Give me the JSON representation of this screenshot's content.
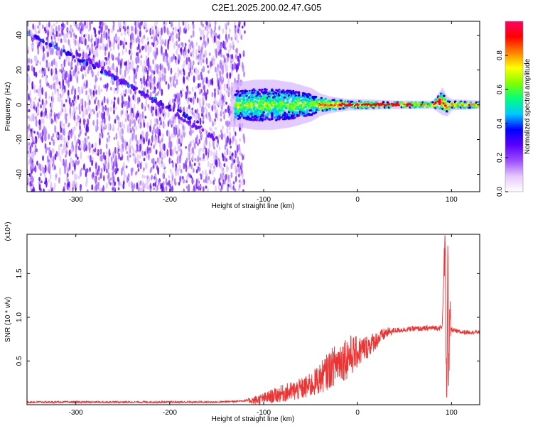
{
  "title": "C2E1.2025.200.02.47.G05",
  "chart_data": [
    {
      "type": "heatmap",
      "xlabel": "Height of straight line (km)",
      "ylabel": "Frequency (Hz)",
      "xlim": [
        -352,
        130
      ],
      "ylim": [
        -50,
        48
      ],
      "xticks": [
        -300,
        -200,
        -100,
        0,
        100
      ],
      "xtick_labels": [
        "-300",
        "-200",
        "-100",
        "0",
        "100"
      ],
      "yticks": [
        -40,
        -20,
        0,
        20,
        40
      ],
      "ytick_labels": [
        "-40",
        "-20",
        "0",
        "20",
        "40"
      ],
      "colorbar": {
        "label": "Normalized spectral amplitude",
        "range": [
          0,
          1
        ],
        "ticks": [
          0,
          0.2,
          0.4,
          0.6,
          0.8
        ],
        "tick_labels": [
          "0.0",
          "0.2",
          "0.4",
          "0.6",
          "0.8"
        ],
        "colormap": [
          "#ffffff",
          "#e6c8ff",
          "#9b4dff",
          "#5a00ff",
          "#0000ff",
          "#00c8ff",
          "#00ff80",
          "#80ff00",
          "#ffff00",
          "#ff8000",
          "#ff0000",
          "#ff0066"
        ]
      },
      "noise_region_x": [
        -352,
        -120
      ],
      "trend_line": [
        [
          -352,
          42
        ],
        [
          -170,
          -10
        ]
      ],
      "trend_line_2": [
        [
          -300,
          30
        ],
        [
          -150,
          -20
        ]
      ],
      "tone_track": [
        [
          -130,
          0
        ],
        [
          -110,
          0
        ],
        [
          -90,
          0
        ],
        [
          -70,
          0
        ],
        [
          -50,
          0
        ],
        [
          -30,
          0
        ],
        [
          -10,
          0
        ],
        [
          0,
          0
        ],
        [
          20,
          0
        ],
        [
          40,
          0
        ],
        [
          60,
          0
        ],
        [
          80,
          0
        ],
        [
          85,
          1
        ],
        [
          90,
          2
        ],
        [
          95,
          -1
        ],
        [
          100,
          0
        ],
        [
          115,
          0
        ],
        [
          130,
          0
        ]
      ],
      "tone_spread": [
        [
          -130,
          8
        ],
        [
          -110,
          9
        ],
        [
          -90,
          9
        ],
        [
          -70,
          8
        ],
        [
          -50,
          6
        ],
        [
          -40,
          4
        ],
        [
          -30,
          3
        ],
        [
          -10,
          2
        ],
        [
          0,
          2
        ],
        [
          40,
          1.5
        ],
        [
          80,
          1.5
        ],
        [
          90,
          5
        ],
        [
          100,
          2
        ],
        [
          130,
          1.5
        ]
      ],
      "tone_peak_amplitude": 0.95
    },
    {
      "type": "line",
      "xlabel": "Height of straight line (km)",
      "ylabel": "SNR (10 * v/v)",
      "y_multiplier": "(x10⁴)",
      "xlim": [
        -352,
        130
      ],
      "ylim": [
        0,
        1.95
      ],
      "xticks": [
        -300,
        -200,
        -100,
        0,
        100
      ],
      "xtick_labels": [
        "-300",
        "-200",
        "-100",
        "0",
        "100"
      ],
      "yticks": [
        0.5,
        1.0,
        1.5
      ],
      "ytick_labels": [
        "0.5",
        "1.0",
        "1.5"
      ],
      "color": "#ee3333",
      "series": [
        {
          "x": [
            -352,
            -300,
            -250,
            -200,
            -150,
            -130,
            -110,
            -100,
            -90,
            -80,
            -70,
            -60,
            -50,
            -40,
            -30,
            -20,
            -10,
            0,
            10,
            20,
            30,
            40,
            50,
            60,
            70,
            80,
            90,
            93,
            95,
            96,
            97,
            98,
            100,
            105,
            110,
            120,
            130
          ],
          "y": [
            0.03,
            0.03,
            0.03,
            0.03,
            0.03,
            0.04,
            0.05,
            0.07,
            0.1,
            0.13,
            0.15,
            0.18,
            0.22,
            0.3,
            0.4,
            0.5,
            0.55,
            0.6,
            0.66,
            0.74,
            0.82,
            0.85,
            0.86,
            0.87,
            0.87,
            0.88,
            0.88,
            1.85,
            0.05,
            1.9,
            0.1,
            0.9,
            0.86,
            0.84,
            0.83,
            0.83,
            0.83
          ]
        }
      ],
      "noise_amplitude": [
        [
          -352,
          0.01
        ],
        [
          -120,
          0.01
        ],
        [
          -110,
          0.05
        ],
        [
          -80,
          0.1
        ],
        [
          -50,
          0.14
        ],
        [
          -30,
          0.22
        ],
        [
          -10,
          0.26
        ],
        [
          0,
          0.18
        ],
        [
          20,
          0.1
        ],
        [
          40,
          0.03
        ],
        [
          90,
          0.03
        ],
        [
          130,
          0.02
        ]
      ]
    }
  ]
}
